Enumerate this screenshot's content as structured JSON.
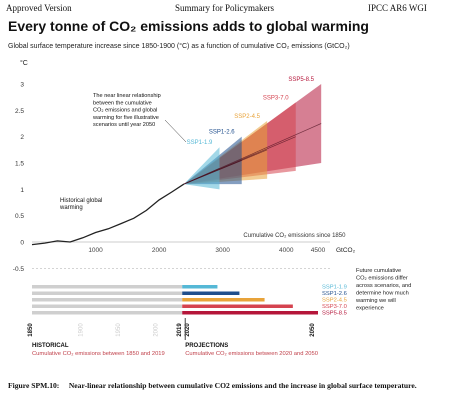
{
  "header": {
    "left": "Approved Version",
    "center": "Summary for Policymakers",
    "right": "IPCC AR6 WGI"
  },
  "title": "Every tonne of CO₂ emissions adds to global warming",
  "subtitle": "Global surface temperature increase since 1850-1900 (°C) as a function of cumulative CO₂ emissions (GtCO₂)",
  "caption": {
    "label": "Figure SPM.10:",
    "text": "Near-linear relationship between cumulative CO2 emissions and the increase in global surface temperature."
  },
  "chart_data": [
    {
      "type": "line",
      "y_unit": "°C",
      "ylim": [
        -0.5,
        3.0
      ],
      "xlim": [
        0,
        4500
      ],
      "x_ticks": [
        1000,
        2000,
        3000,
        4000,
        4500
      ],
      "x_unit": "GtCO₂",
      "y_ticks": [
        0,
        0.5,
        1.0,
        1.5,
        2.0,
        2.5,
        3.0
      ],
      "y_tick_labels": [
        "0",
        "0.5",
        "1",
        "1.5",
        "2",
        "2.5",
        "3"
      ],
      "xaxis_label": "Cumulative CO₂ emissions since 1850",
      "series": [
        {
          "name": "Historical global warming",
          "x": [
            0,
            200,
            400,
            600,
            800,
            1000,
            1200,
            1400,
            1600,
            1800,
            2000,
            2200,
            2390
          ],
          "y": [
            -0.05,
            -0.02,
            0.02,
            0.0,
            0.08,
            0.18,
            0.25,
            0.35,
            0.45,
            0.6,
            0.8,
            0.95,
            1.1
          ]
        },
        {
          "name": "SSP1-1.9",
          "color": "#55b8d6",
          "x_end": 2950,
          "mean_end": 1.4,
          "spread_end": 0.4
        },
        {
          "name": "SSP1-2.6",
          "color": "#1f4e8c",
          "x_end": 3300,
          "mean_end": 1.55,
          "spread_end": 0.45
        },
        {
          "name": "SSP2-4.5",
          "color": "#e8a33a",
          "x_end": 3700,
          "mean_end": 1.75,
          "spread_end": 0.55
        },
        {
          "name": "SSP3-7.0",
          "color": "#d5434f",
          "x_end": 4150,
          "mean_end": 2.0,
          "spread_end": 0.65
        },
        {
          "name": "SSP5-8.5",
          "color": "#b5163a",
          "x_end": 4550,
          "mean_end": 2.25,
          "spread_end": 0.75
        }
      ],
      "annotations": [
        "The near linear relationship between the cumulative CO₂ emissions and global warming for five illustrative scenarios until year 2050",
        "Historical global warming"
      ]
    },
    {
      "type": "bar",
      "orientation": "horizontal",
      "year_labels": [
        "1850",
        "2019",
        "2020",
        "2050"
      ],
      "ghost_year_labels": [
        "1900",
        "1950",
        "2000"
      ],
      "categories": [
        "SSP1-1.9",
        "SSP1-2.6",
        "SSP2-4.5",
        "SSP3-7.0",
        "SSP5-8.5"
      ],
      "colors": [
        "#55b8d6",
        "#1f4e8c",
        "#e8a33a",
        "#d5434f",
        "#b5163a"
      ],
      "historical_end": 2390,
      "values": [
        2950,
        3300,
        3700,
        4150,
        4550
      ],
      "historical_label": "HISTORICAL",
      "historical_sub": [
        "Cumulative CO₂ emissions between ",
        "1850",
        " and ",
        "2019"
      ],
      "projections_label": "PROJECTIONS",
      "projections_sub": [
        "Cumulative CO₂ emissions between ",
        "2020",
        " and ",
        "2050"
      ],
      "note": [
        "Future cumulative",
        "CO₂ emissions differ",
        "across scenarios, and",
        "determine how much",
        "warming we will",
        "experience"
      ]
    }
  ]
}
